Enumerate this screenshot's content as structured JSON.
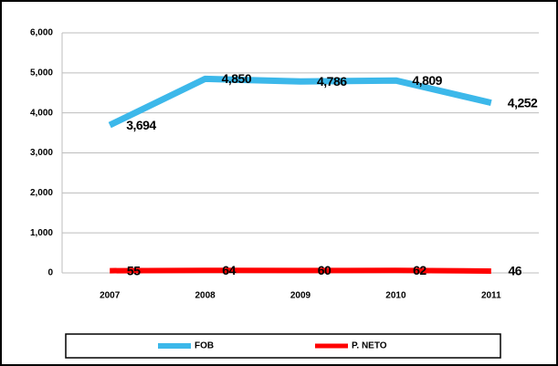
{
  "chart_data": {
    "type": "line",
    "categories": [
      "2007",
      "2008",
      "2009",
      "2010",
      "2011"
    ],
    "series": [
      {
        "name": "FOB",
        "color": "#3cb8ea",
        "values": [
          3694,
          4850,
          4786,
          4809,
          4252
        ],
        "value_labels": [
          "3,694",
          "4,850",
          "4,786",
          "4,809",
          "4,252"
        ]
      },
      {
        "name": "P. NETO",
        "color": "#ff0000",
        "values": [
          55,
          64,
          60,
          62,
          46
        ]
      }
    ],
    "ylim": [
      0,
      6000
    ],
    "yticks": [
      0,
      {
        "value": 1000,
        "label": "1,000"
      },
      {
        "value": 2000,
        "label": "2,000"
      },
      {
        "value": 3000,
        "label": "3,000"
      },
      {
        "value": 4000,
        "label": "4,000"
      },
      {
        "value": 5000,
        "label": "5,000"
      },
      {
        "value": 6000,
        "label": "6,000"
      }
    ],
    "grid": true,
    "legend": "bottom"
  }
}
